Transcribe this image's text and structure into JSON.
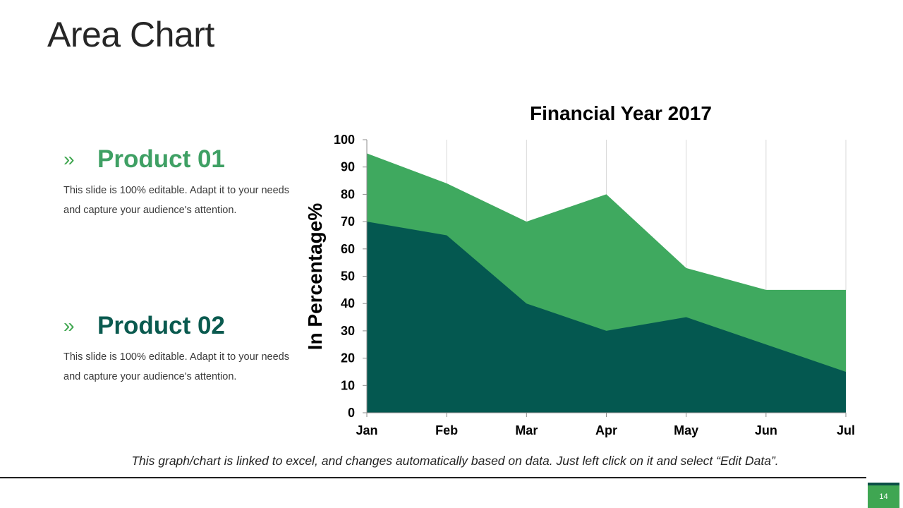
{
  "slide": {
    "title": "Area Chart",
    "footnote": "This graph/chart is linked to excel, and changes automatically based on data. Just left click on it and select “Edit Data”.",
    "page_number": "14"
  },
  "products": [
    {
      "chevron": "»",
      "title": "Product 01",
      "description": "This slide is 100% editable. Adapt it to your needs and capture your audience's attention."
    },
    {
      "chevron": "»",
      "title": "Product 02",
      "description": "This slide is 100% editable. Adapt it to your needs and capture your audience's attention."
    }
  ],
  "colors": {
    "accent_light": "#3fa95f",
    "accent_dark": "#045850",
    "page_tab": "#3fa652"
  },
  "chart_data": {
    "type": "area",
    "title": "Financial Year 2017",
    "xlabel": "",
    "ylabel": "In Percentage%",
    "categories": [
      "Jan",
      "Feb",
      "Mar",
      "Apr",
      "May",
      "Jun",
      "Jul"
    ],
    "ylim": [
      0,
      100
    ],
    "yticks": [
      0,
      10,
      20,
      30,
      40,
      50,
      60,
      70,
      80,
      90,
      100
    ],
    "grid": "vertical",
    "series": [
      {
        "name": "Product 01",
        "color": "#3fa95f",
        "values": [
          95,
          84,
          70,
          80,
          53,
          45,
          45
        ]
      },
      {
        "name": "Product 02",
        "color": "#045850",
        "values": [
          70,
          65,
          40,
          30,
          35,
          25,
          15
        ]
      }
    ]
  }
}
